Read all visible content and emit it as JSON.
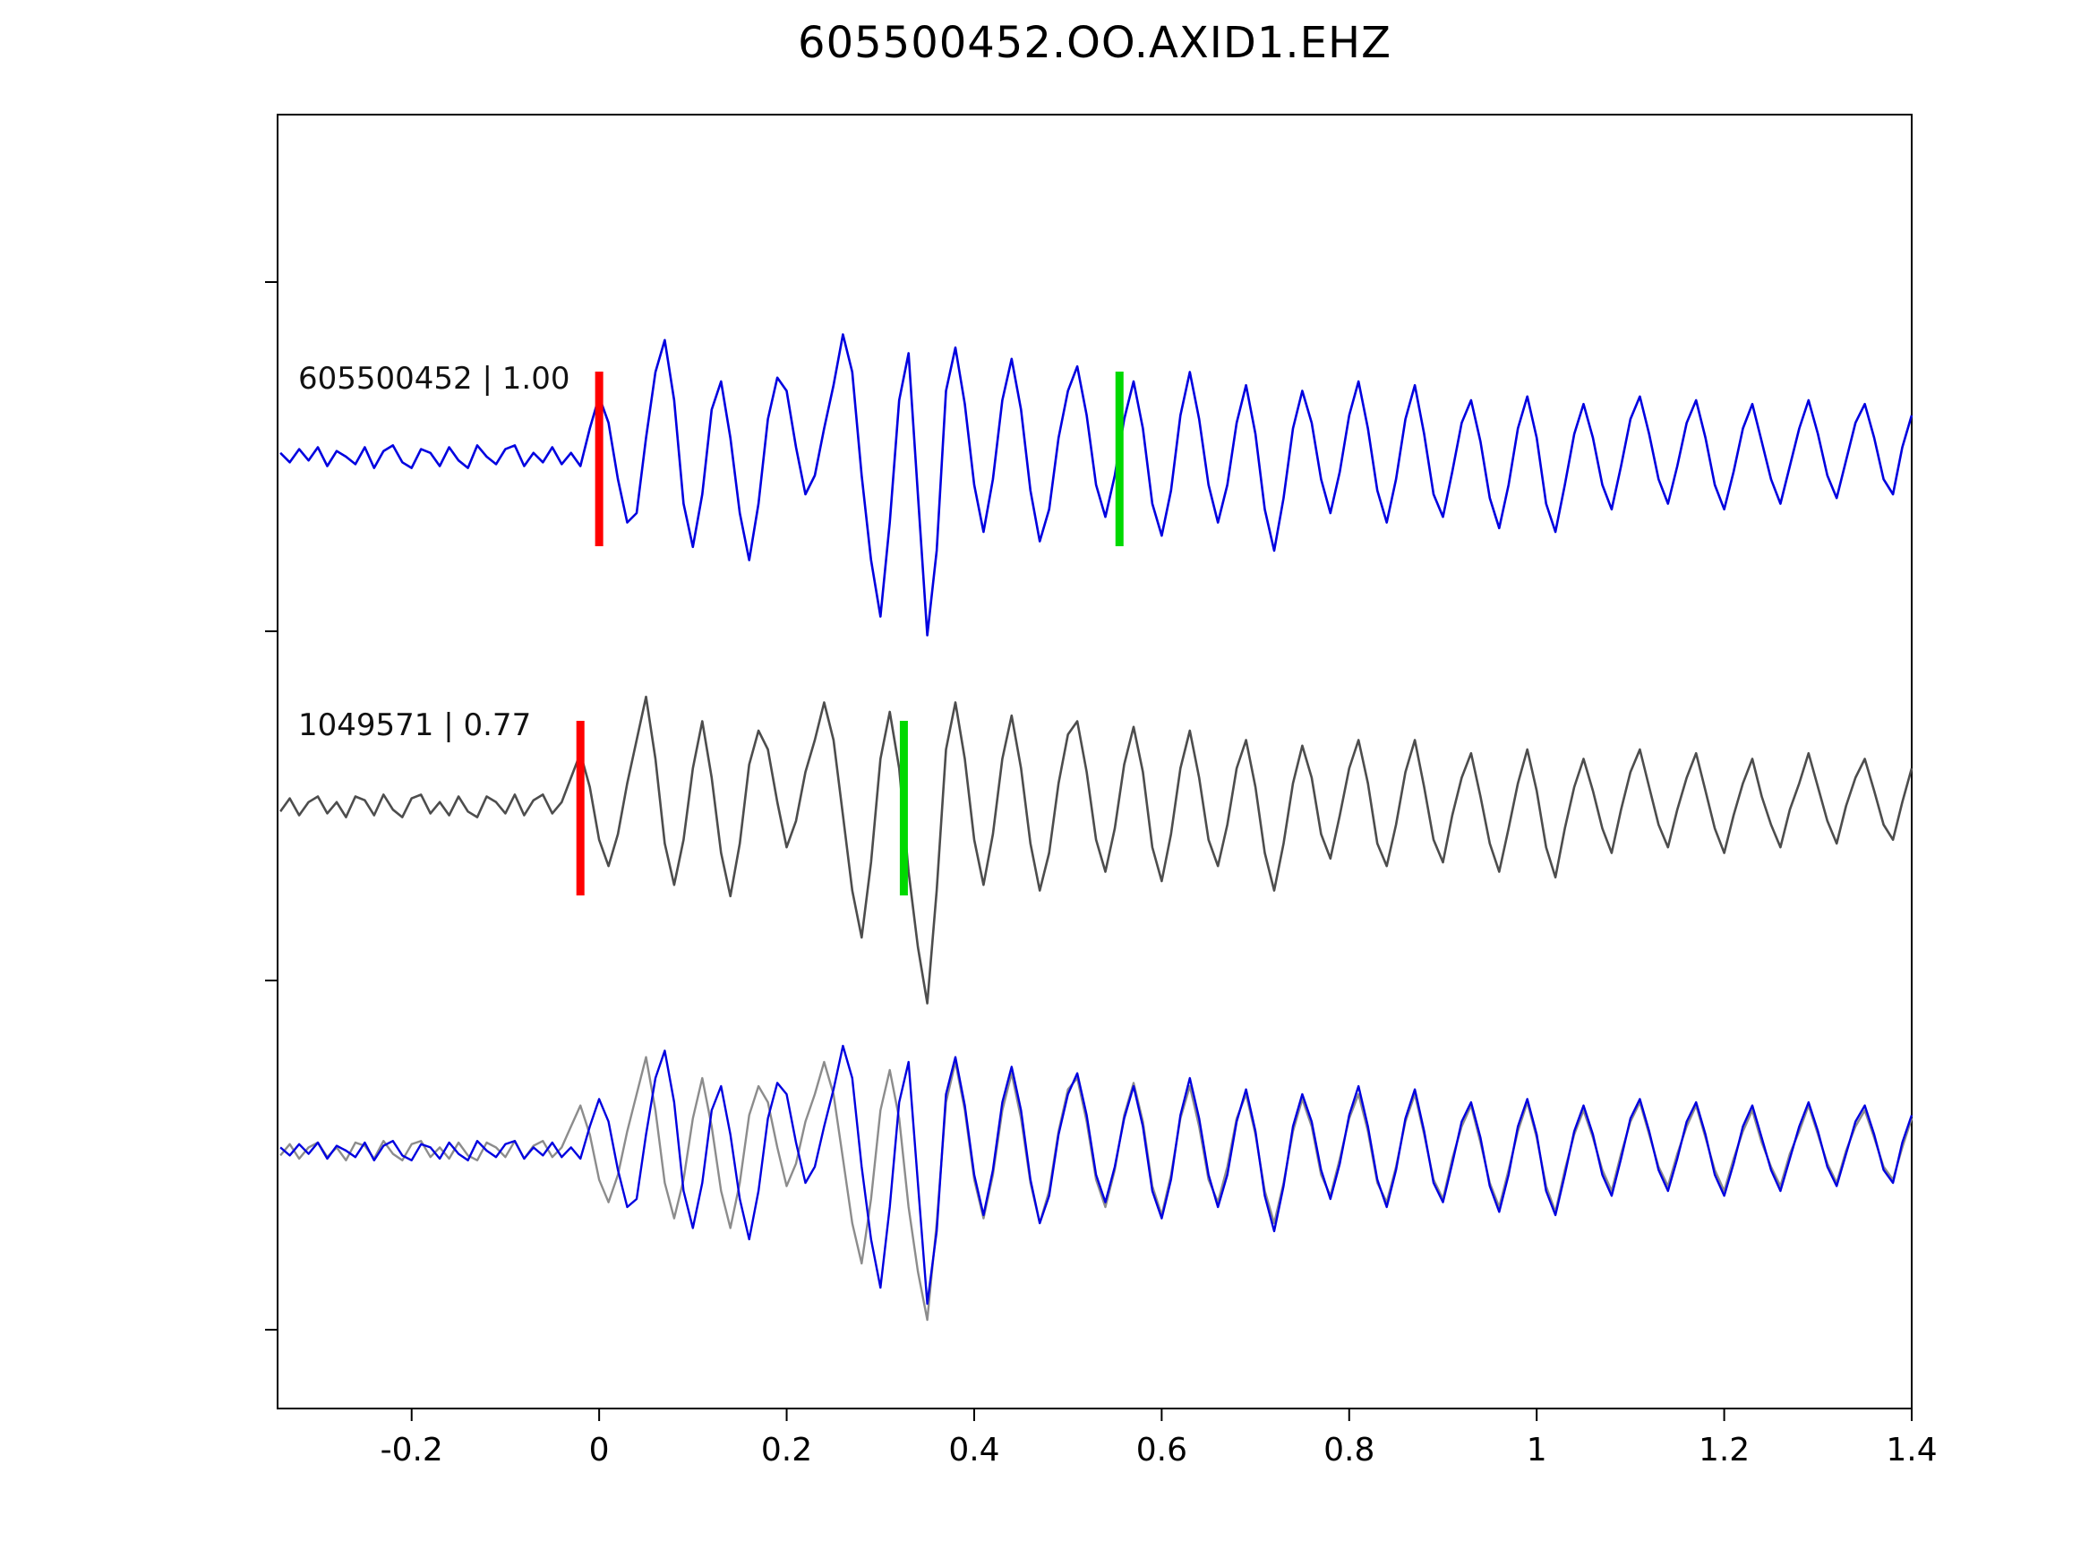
{
  "chart_data": {
    "type": "line",
    "title": "605500452.OO.AXID1.EHZ",
    "xlabel": "",
    "ylabel": "",
    "grid": false,
    "legend_position": "none",
    "xlim": [
      -0.343,
      1.4
    ],
    "x_start": -0.34,
    "x_step": 0.01,
    "xticks": {
      "values": [
        -0.2,
        0,
        0.2,
        0.4,
        0.6,
        0.8,
        1,
        1.2,
        1.4
      ],
      "labels": [
        "-0.2",
        "0",
        "0.2",
        "0.4",
        "0.6",
        "0.8",
        "1",
        "1.2",
        "1.4"
      ]
    },
    "colors": {
      "template_blue": "#0000e0",
      "candidate_dark_gray": "#4d4d4d",
      "overlay_gray": "#8c8c8c",
      "pick_red": "#ff0000",
      "pick_green": "#00d900",
      "axes": "#000000"
    },
    "series": {
      "blue": [
        0.02,
        -0.03,
        0.04,
        -0.02,
        0.05,
        -0.05,
        0.03,
        0.0,
        -0.04,
        0.05,
        -0.06,
        0.03,
        0.06,
        -0.03,
        -0.06,
        0.04,
        0.02,
        -0.05,
        0.05,
        -0.02,
        -0.06,
        0.06,
        0.0,
        -0.04,
        0.04,
        0.06,
        -0.05,
        0.02,
        -0.03,
        0.05,
        -0.04,
        0.02,
        -0.05,
        0.15,
        0.32,
        0.18,
        -0.12,
        -0.35,
        -0.3,
        0.1,
        0.45,
        0.62,
        0.3,
        -0.25,
        -0.48,
        -0.2,
        0.25,
        0.4,
        0.1,
        -0.3,
        -0.55,
        -0.25,
        0.2,
        0.42,
        0.35,
        0.05,
        -0.2,
        -0.1,
        0.15,
        0.38,
        0.65,
        0.45,
        -0.1,
        -0.55,
        -0.85,
        -0.35,
        0.3,
        0.55,
        -0.2,
        -0.95,
        -0.5,
        0.35,
        0.58,
        0.28,
        -0.15,
        -0.4,
        -0.12,
        0.3,
        0.52,
        0.25,
        -0.18,
        -0.45,
        -0.28,
        0.1,
        0.35,
        0.48,
        0.22,
        -0.15,
        -0.32,
        -0.1,
        0.2,
        0.4,
        0.15,
        -0.25,
        -0.42,
        -0.18,
        0.22,
        0.45,
        0.2,
        -0.15,
        -0.35,
        -0.15,
        0.18,
        0.38,
        0.12,
        -0.28,
        -0.5,
        -0.22,
        0.15,
        0.35,
        0.18,
        -0.12,
        -0.3,
        -0.08,
        0.22,
        0.4,
        0.15,
        -0.18,
        -0.35,
        -0.12,
        0.2,
        0.38,
        0.12,
        -0.2,
        -0.32,
        -0.08,
        0.18,
        0.3,
        0.08,
        -0.22,
        -0.38,
        -0.15,
        0.15,
        0.32,
        0.1,
        -0.25,
        -0.4,
        -0.15,
        0.12,
        0.28,
        0.1,
        -0.15,
        -0.28,
        -0.05,
        0.2,
        0.32,
        0.12,
        -0.12,
        -0.25,
        -0.05,
        0.18,
        0.3,
        0.1,
        -0.15,
        -0.28,
        -0.08,
        0.15,
        0.28,
        0.08,
        -0.12,
        -0.25,
        -0.05,
        0.15,
        0.3,
        0.12,
        -0.1,
        -0.22,
        -0.02,
        0.18,
        0.28,
        0.1,
        -0.12,
        -0.2,
        0.05,
        0.22
      ],
      "gray": [
        -0.03,
        0.04,
        -0.05,
        0.02,
        0.05,
        -0.04,
        0.02,
        -0.06,
        0.05,
        0.03,
        -0.05,
        0.06,
        -0.02,
        -0.06,
        0.04,
        0.06,
        -0.04,
        0.02,
        -0.05,
        0.05,
        -0.03,
        -0.06,
        0.05,
        0.02,
        -0.04,
        0.06,
        -0.05,
        0.03,
        0.06,
        -0.04,
        0.02,
        0.15,
        0.28,
        0.1,
        -0.18,
        -0.32,
        -0.15,
        0.12,
        0.35,
        0.58,
        0.25,
        -0.2,
        -0.42,
        -0.18,
        0.2,
        0.45,
        0.15,
        -0.25,
        -0.48,
        -0.2,
        0.22,
        0.4,
        0.3,
        0.02,
        -0.22,
        -0.08,
        0.18,
        0.35,
        0.55,
        0.35,
        -0.05,
        -0.45,
        -0.7,
        -0.3,
        0.25,
        0.5,
        0.2,
        -0.35,
        -0.75,
        -1.05,
        -0.45,
        0.3,
        0.55,
        0.25,
        -0.18,
        -0.42,
        -0.15,
        0.25,
        0.48,
        0.2,
        -0.2,
        -0.45,
        -0.25,
        0.12,
        0.38,
        0.45,
        0.18,
        -0.18,
        -0.35,
        -0.12,
        0.22,
        0.42,
        0.18,
        -0.22,
        -0.4,
        -0.15,
        0.2,
        0.4,
        0.15,
        -0.18,
        -0.32,
        -0.1,
        0.2,
        0.35,
        0.1,
        -0.25,
        -0.45,
        -0.2,
        0.12,
        0.32,
        0.15,
        -0.15,
        -0.28,
        -0.05,
        0.2,
        0.35,
        0.12,
        -0.2,
        -0.32,
        -0.1,
        0.18,
        0.35,
        0.1,
        -0.18,
        -0.3,
        -0.05,
        0.15,
        0.28,
        0.05,
        -0.2,
        -0.35,
        -0.12,
        0.12,
        0.3,
        0.08,
        -0.22,
        -0.38,
        -0.12,
        0.1,
        0.25,
        0.08,
        -0.12,
        -0.25,
        -0.02,
        0.18,
        0.3,
        0.1,
        -0.1,
        -0.22,
        -0.02,
        0.15,
        0.28,
        0.08,
        -0.12,
        -0.25,
        -0.05,
        0.12,
        0.25,
        0.05,
        -0.1,
        -0.22,
        -0.02,
        0.12,
        0.28,
        0.1,
        -0.08,
        -0.2,
        0.0,
        0.15,
        0.25,
        0.08,
        -0.1,
        -0.18,
        0.02,
        0.2
      ]
    },
    "panels": [
      {
        "name": "template-trace",
        "label": "605500452 | 1.00",
        "traces": [
          {
            "series": "blue",
            "color": "#0000e0",
            "width": 2.6
          }
        ],
        "picks": [
          {
            "x": 0.0,
            "color": "#ff0000"
          },
          {
            "x": 0.555,
            "color": "#00d900"
          }
        ]
      },
      {
        "name": "candidate-trace",
        "label": "1049571 | 0.77",
        "traces": [
          {
            "series": "gray",
            "color": "#4d4d4d",
            "width": 2.6
          }
        ],
        "picks": [
          {
            "x": -0.02,
            "color": "#ff0000"
          },
          {
            "x": 0.325,
            "color": "#00d900"
          }
        ]
      },
      {
        "name": "overlay-trace",
        "label": "",
        "traces": [
          {
            "series": "gray",
            "color": "#8c8c8c",
            "width": 2.4
          },
          {
            "series": "blue",
            "color": "#0000e0",
            "width": 2.4
          }
        ],
        "picks": []
      }
    ]
  }
}
